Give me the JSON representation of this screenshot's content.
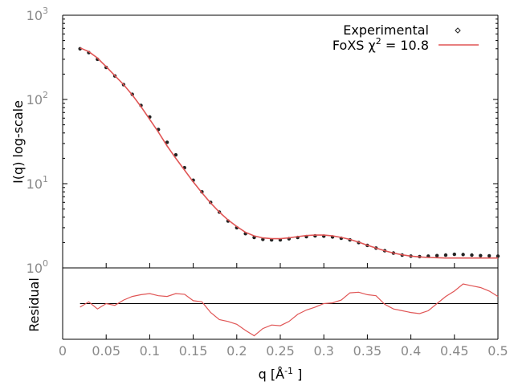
{
  "chart_data": [
    {
      "type": "scatter",
      "xlabel_parts": {
        "pre": "q [Å",
        "sup": "-1",
        "post": " ]"
      },
      "ylabel": "I(q) log-scale",
      "yscale": "log",
      "xlim": [
        0,
        0.5
      ],
      "ylim": [
        1,
        1000
      ],
      "x_ticks": [
        "0",
        "0.05",
        "0.1",
        "0.15",
        "0.2",
        "0.25",
        "0.3",
        "0.35",
        "0.4",
        "0.45",
        "0.5"
      ],
      "y_ticks": [
        {
          "base": "10",
          "exp": "0",
          "value": 1
        },
        {
          "base": "10",
          "exp": "1",
          "value": 10
        },
        {
          "base": "10",
          "exp": "2",
          "value": 100
        },
        {
          "base": "10",
          "exp": "3",
          "value": 1000
        }
      ],
      "legend_position": "top-right",
      "legend": {
        "experimental": "Experimental",
        "fit_pre": "FoXS χ",
        "fit_sup": "2",
        "fit_post": " = 10.8"
      },
      "series": [
        {
          "name": "Experimental",
          "marker": "points",
          "color": "#222222",
          "x": [
            0.02,
            0.03,
            0.04,
            0.05,
            0.06,
            0.07,
            0.08,
            0.09,
            0.1,
            0.11,
            0.12,
            0.13,
            0.14,
            0.15,
            0.16,
            0.17,
            0.18,
            0.19,
            0.2,
            0.21,
            0.22,
            0.23,
            0.24,
            0.25,
            0.26,
            0.27,
            0.28,
            0.29,
            0.3,
            0.31,
            0.32,
            0.33,
            0.34,
            0.35,
            0.36,
            0.37,
            0.38,
            0.39,
            0.4,
            0.41,
            0.42,
            0.43,
            0.44,
            0.45,
            0.46,
            0.47,
            0.48,
            0.49,
            0.5
          ],
          "y": [
            400,
            360,
            300,
            240,
            190,
            150,
            115,
            85,
            62,
            44,
            31,
            22,
            15.5,
            11,
            8.0,
            6.0,
            4.6,
            3.6,
            3.0,
            2.55,
            2.3,
            2.18,
            2.15,
            2.15,
            2.22,
            2.3,
            2.35,
            2.4,
            2.38,
            2.33,
            2.25,
            2.15,
            2.0,
            1.85,
            1.72,
            1.6,
            1.5,
            1.42,
            1.38,
            1.36,
            1.38,
            1.4,
            1.42,
            1.45,
            1.44,
            1.42,
            1.4,
            1.39,
            1.38
          ]
        },
        {
          "name": "FoXS",
          "marker": "line",
          "color": "#e05555",
          "x": [
            0.02,
            0.03,
            0.04,
            0.05,
            0.06,
            0.07,
            0.08,
            0.09,
            0.1,
            0.11,
            0.12,
            0.13,
            0.14,
            0.15,
            0.16,
            0.17,
            0.18,
            0.19,
            0.2,
            0.21,
            0.22,
            0.23,
            0.24,
            0.25,
            0.26,
            0.27,
            0.28,
            0.29,
            0.3,
            0.31,
            0.32,
            0.33,
            0.34,
            0.35,
            0.36,
            0.37,
            0.38,
            0.39,
            0.4,
            0.41,
            0.42,
            0.43,
            0.44,
            0.45,
            0.46,
            0.47,
            0.48,
            0.49,
            0.5
          ],
          "y": [
            410,
            370,
            310,
            245,
            192,
            150,
            113,
            82,
            58,
            41,
            28,
            20,
            14.5,
            10.5,
            7.8,
            5.9,
            4.6,
            3.7,
            3.1,
            2.65,
            2.4,
            2.27,
            2.22,
            2.22,
            2.27,
            2.35,
            2.42,
            2.46,
            2.45,
            2.4,
            2.3,
            2.18,
            2.02,
            1.86,
            1.72,
            1.6,
            1.5,
            1.43,
            1.38,
            1.35,
            1.33,
            1.32,
            1.31,
            1.31,
            1.31,
            1.31,
            1.31,
            1.31,
            1.31
          ]
        }
      ]
    },
    {
      "type": "line",
      "ylabel": "Residual",
      "xlim": [
        0,
        0.5
      ],
      "ylim": [
        -1,
        1
      ],
      "series": [
        {
          "name": "Residual",
          "color": "#e05555",
          "x": [
            0.02,
            0.03,
            0.04,
            0.05,
            0.06,
            0.07,
            0.08,
            0.09,
            0.1,
            0.11,
            0.12,
            0.13,
            0.14,
            0.15,
            0.16,
            0.17,
            0.18,
            0.19,
            0.2,
            0.21,
            0.22,
            0.23,
            0.24,
            0.25,
            0.26,
            0.27,
            0.28,
            0.29,
            0.3,
            0.31,
            0.32,
            0.33,
            0.34,
            0.35,
            0.36,
            0.37,
            0.38,
            0.39,
            0.4,
            0.41,
            0.42,
            0.43,
            0.44,
            0.45,
            0.46,
            0.47,
            0.48,
            0.49,
            0.5
          ],
          "y": [
            -0.1,
            0.05,
            -0.15,
            0.0,
            -0.05,
            0.1,
            0.2,
            0.25,
            0.28,
            0.22,
            0.2,
            0.28,
            0.26,
            0.08,
            0.05,
            -0.25,
            -0.45,
            -0.5,
            -0.58,
            -0.75,
            -0.9,
            -0.7,
            -0.6,
            -0.62,
            -0.5,
            -0.3,
            -0.18,
            -0.1,
            0.0,
            0.02,
            0.1,
            0.3,
            0.32,
            0.25,
            0.22,
            -0.02,
            -0.15,
            -0.2,
            -0.25,
            -0.28,
            -0.2,
            0.0,
            0.2,
            0.35,
            0.55,
            0.5,
            0.45,
            0.35,
            0.2
          ]
        },
        {
          "name": "zero",
          "color": "#000000",
          "x": [
            0.02,
            0.5
          ],
          "y": [
            0,
            0
          ]
        }
      ]
    }
  ]
}
